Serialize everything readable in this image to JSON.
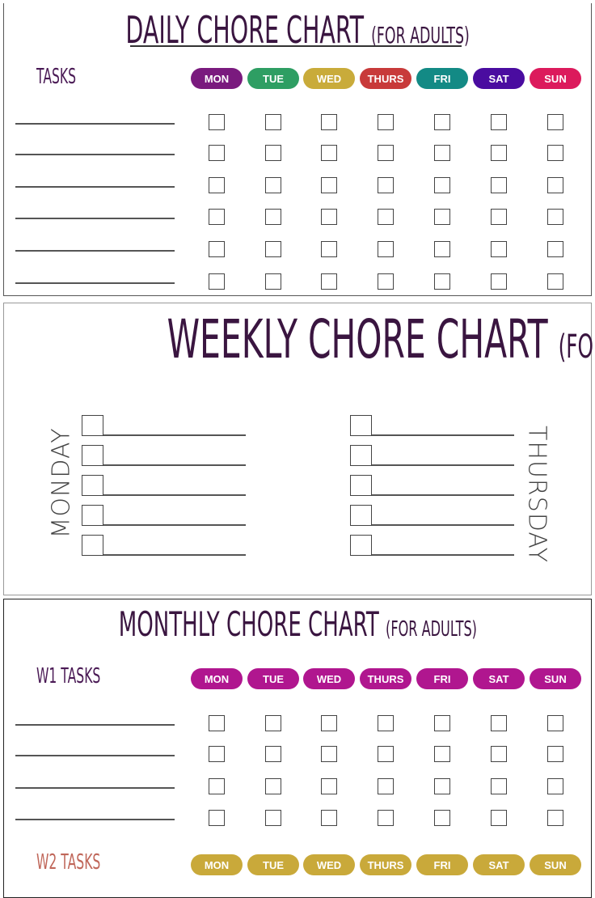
{
  "daily": {
    "title": "DAILY CHORE CHART",
    "subtitle": "(FOR ADULTS)",
    "tasks_label": "TASKS",
    "rows": 6,
    "days": [
      {
        "label": "MON",
        "color": "#7a1a7e"
      },
      {
        "label": "TUE",
        "color": "#2e9e63"
      },
      {
        "label": "WED",
        "color": "#c9ab3a"
      },
      {
        "label": "THURS",
        "color": "#c83a3a"
      },
      {
        "label": "FRI",
        "color": "#138a85"
      },
      {
        "label": "SAT",
        "color": "#4a0ca0"
      },
      {
        "label": "SUN",
        "color": "#dc1a5c"
      }
    ]
  },
  "weekly": {
    "title": "WEEKLY CHORE CHART",
    "subtitle": "(FOR ADULTS)",
    "left_day": "MONDAY",
    "right_day": "THURSDAY",
    "rows": 5
  },
  "monthly": {
    "title": "MONTHLY CHORE CHART",
    "subtitle": "(FOR ADULTS)",
    "w1": {
      "label": "W1 TASKS",
      "label_color": "#4a1a55",
      "pill_color": "#b0168f",
      "rows": 4
    },
    "w2": {
      "label": "W2 TASKS",
      "label_color": "#c0675a",
      "pill_color": "#c9a93a"
    },
    "days": [
      "MON",
      "TUE",
      "WED",
      "THURS",
      "FRI",
      "SAT",
      "SUN"
    ]
  }
}
